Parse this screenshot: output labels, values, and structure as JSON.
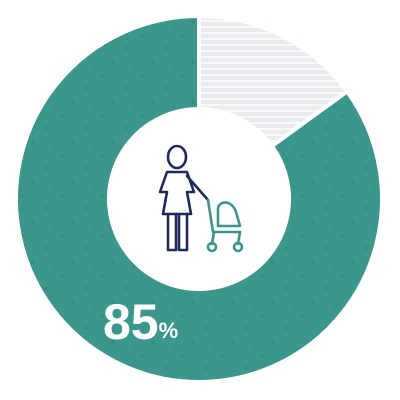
{
  "chart_data": {
    "type": "donut",
    "values": [
      85,
      15
    ],
    "value_labels": [
      "85%",
      null
    ],
    "colors": [
      "#3b968b",
      "#e9ecef"
    ]
  }
}
